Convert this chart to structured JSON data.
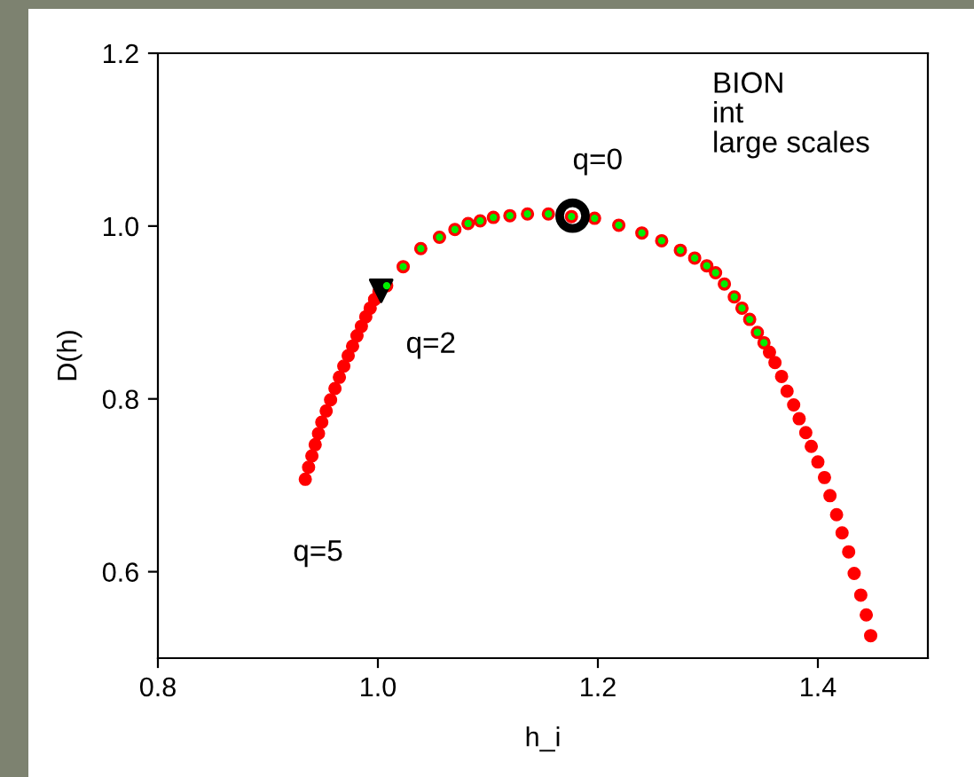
{
  "chart_data": {
    "type": "scatter",
    "xlabel": "h_i",
    "ylabel": "D(h)",
    "xlim": [
      0.8,
      1.5
    ],
    "ylim": [
      0.5,
      1.2
    ],
    "xticks": [
      {
        "value": 0.8,
        "label": "0.8"
      },
      {
        "value": 1.0,
        "label": "1.0"
      },
      {
        "value": 1.2,
        "label": "1.2"
      },
      {
        "value": 1.4,
        "label": "1.4"
      }
    ],
    "yticks": [
      {
        "value": 0.6,
        "label": "0.6"
      },
      {
        "value": 0.8,
        "label": "0.8"
      },
      {
        "value": 1.0,
        "label": "1.0"
      },
      {
        "value": 1.2,
        "label": "1.2"
      }
    ],
    "grid": false,
    "legend": false,
    "series": [
      {
        "color": "#ff0000",
        "marker": "circle",
        "x": [
          0.934,
          0.937,
          0.94,
          0.943,
          0.946,
          0.949,
          0.953,
          0.957,
          0.961,
          0.965,
          0.969,
          0.973,
          0.977,
          0.981,
          0.985,
          0.989,
          0.993,
          0.997,
          1.001,
          1.008,
          1.023,
          1.039,
          1.056,
          1.07,
          1.082,
          1.093,
          1.105,
          1.12,
          1.136,
          1.155,
          1.176,
          1.197,
          1.219,
          1.24,
          1.258,
          1.275,
          1.288,
          1.299,
          1.307,
          1.315,
          1.324,
          1.331,
          1.338,
          1.345,
          1.351,
          1.356,
          1.361,
          1.367,
          1.372,
          1.378,
          1.383,
          1.389,
          1.394,
          1.4,
          1.406,
          1.411,
          1.417,
          1.422,
          1.428,
          1.433,
          1.439,
          1.444,
          1.448
        ],
        "values": [
          0.707,
          0.721,
          0.734,
          0.747,
          0.76,
          0.773,
          0.786,
          0.799,
          0.812,
          0.825,
          0.838,
          0.85,
          0.861,
          0.873,
          0.884,
          0.895,
          0.905,
          0.915,
          0.924,
          0.931,
          0.953,
          0.974,
          0.987,
          0.996,
          1.003,
          1.006,
          1.01,
          1.012,
          1.014,
          1.014,
          1.011,
          1.009,
          1.001,
          0.992,
          0.983,
          0.972,
          0.963,
          0.954,
          0.946,
          0.933,
          0.918,
          0.905,
          0.892,
          0.877,
          0.865,
          0.854,
          0.842,
          0.826,
          0.809,
          0.793,
          0.777,
          0.761,
          0.745,
          0.727,
          0.709,
          0.688,
          0.666,
          0.645,
          0.623,
          0.598,
          0.573,
          0.55,
          0.526
        ]
      },
      {
        "color": "#00ee00",
        "marker": "circle",
        "x": [
          1.008,
          1.023,
          1.039,
          1.056,
          1.07,
          1.082,
          1.093,
          1.105,
          1.12,
          1.136,
          1.155,
          1.176,
          1.197,
          1.219,
          1.24,
          1.258,
          1.275,
          1.288,
          1.299,
          1.307,
          1.315,
          1.324,
          1.331,
          1.338,
          1.345,
          1.351
        ],
        "values": [
          0.931,
          0.953,
          0.974,
          0.987,
          0.996,
          1.003,
          1.006,
          1.01,
          1.012,
          1.014,
          1.014,
          1.011,
          1.009,
          1.001,
          0.992,
          0.983,
          0.972,
          0.963,
          0.954,
          0.946,
          0.933,
          0.918,
          0.905,
          0.892,
          0.877,
          0.865
        ]
      },
      {
        "color": "#000000",
        "marker": "circle",
        "x": [
          1.177
        ],
        "values": [
          1.012
        ]
      },
      {
        "color": "#000000",
        "marker": "triangle",
        "x": [
          1.003
        ],
        "values": [
          0.925
        ]
      }
    ],
    "annotations": [
      {
        "text": "q=0",
        "x": 1.177,
        "y": 1.012
      },
      {
        "text": "q=2",
        "x": 1.003,
        "y": 0.925
      },
      {
        "text": "q=5",
        "x": 0.934,
        "y": 0.707
      },
      "BION\nint\nlarge scales"
    ]
  }
}
